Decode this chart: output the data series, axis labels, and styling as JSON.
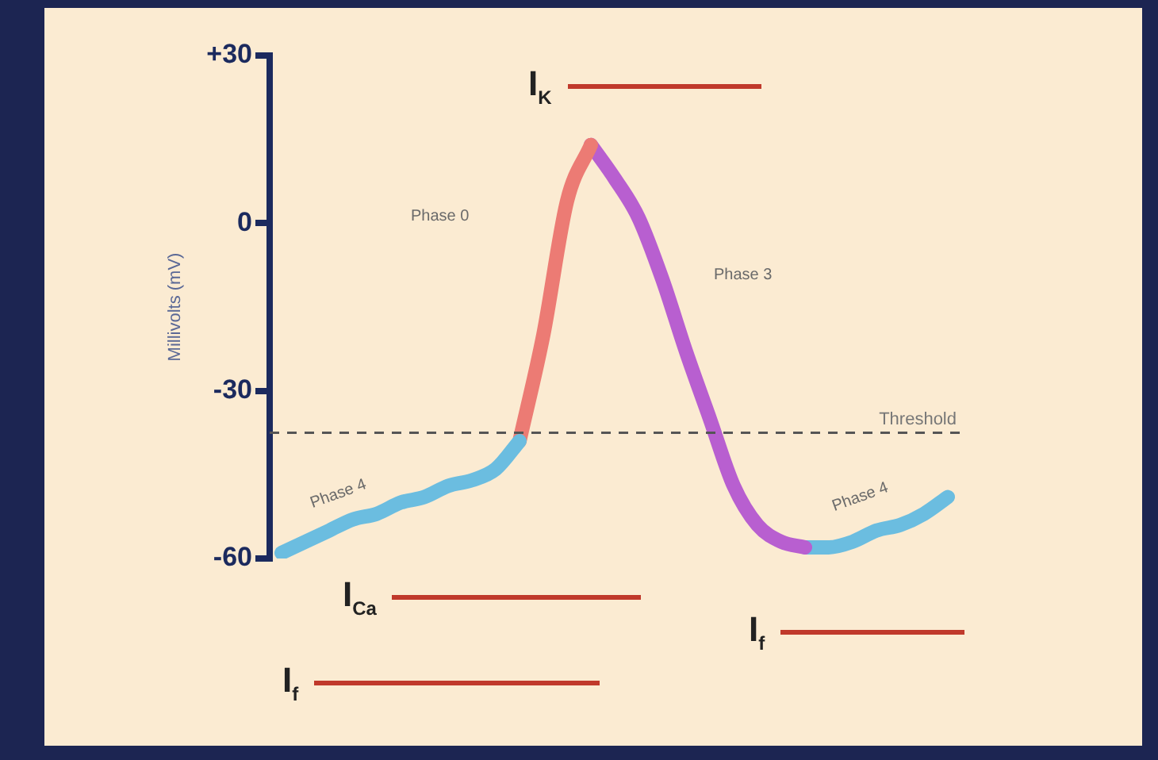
{
  "chart_data": {
    "type": "line",
    "ylabel": "Millivolts (mV)",
    "ylim": [
      -60,
      30
    ],
    "yticks": [
      {
        "value": 30,
        "label": "+30"
      },
      0,
      -30,
      -60
    ],
    "categories": [
      null,
      null,
      null,
      null,
      null,
      null,
      null,
      null,
      null,
      null,
      null,
      null,
      null,
      null,
      null,
      null,
      null,
      null,
      null,
      null,
      null,
      null,
      null,
      null,
      null,
      null,
      null,
      null,
      null
    ],
    "series": [
      {
        "color": "#6bbde0",
        "values": [
          -59,
          -57,
          -55,
          -53,
          -52,
          -50,
          -49,
          -47,
          -46,
          -44,
          -39,
          null,
          null,
          null,
          null,
          null,
          null,
          null,
          null,
          null,
          null,
          null,
          null,
          null,
          null,
          null,
          null,
          null,
          null
        ]
      },
      {
        "color": "#ec7b74",
        "values": [
          null,
          null,
          null,
          null,
          null,
          null,
          null,
          null,
          null,
          null,
          -39,
          -20,
          4,
          14,
          null,
          null,
          null,
          null,
          null,
          null,
          null,
          null,
          null,
          null,
          null,
          null,
          null,
          null,
          null
        ]
      },
      {
        "color": "#b85fd0",
        "values": [
          null,
          null,
          null,
          null,
          null,
          null,
          null,
          null,
          null,
          null,
          null,
          null,
          null,
          14,
          8,
          1,
          -10,
          -23,
          -35,
          -47,
          -54,
          -57,
          -58,
          null,
          null,
          null,
          null,
          null,
          null
        ]
      },
      {
        "color": "#6bbde0",
        "values": [
          null,
          null,
          null,
          null,
          null,
          null,
          null,
          null,
          null,
          null,
          null,
          null,
          null,
          null,
          null,
          null,
          null,
          null,
          null,
          null,
          null,
          null,
          -58,
          -58,
          -57,
          -55,
          -54,
          -52,
          -49
        ]
      }
    ],
    "ref_lines": [
      {
        "axis": "y",
        "value": -37.5,
        "label": "Threshold",
        "color": "#555555",
        "line_style": "dashed"
      }
    ],
    "annotations": [
      "Phase 0",
      "Phase 3",
      "Phase 4",
      "Phase 4",
      "I$_{K}$",
      "I$_{Ca}$",
      "I$_{f}$",
      "I$_{f}$"
    ],
    "grid": false,
    "legend": false,
    "marker": "none",
    "line_style": "solid"
  }
}
